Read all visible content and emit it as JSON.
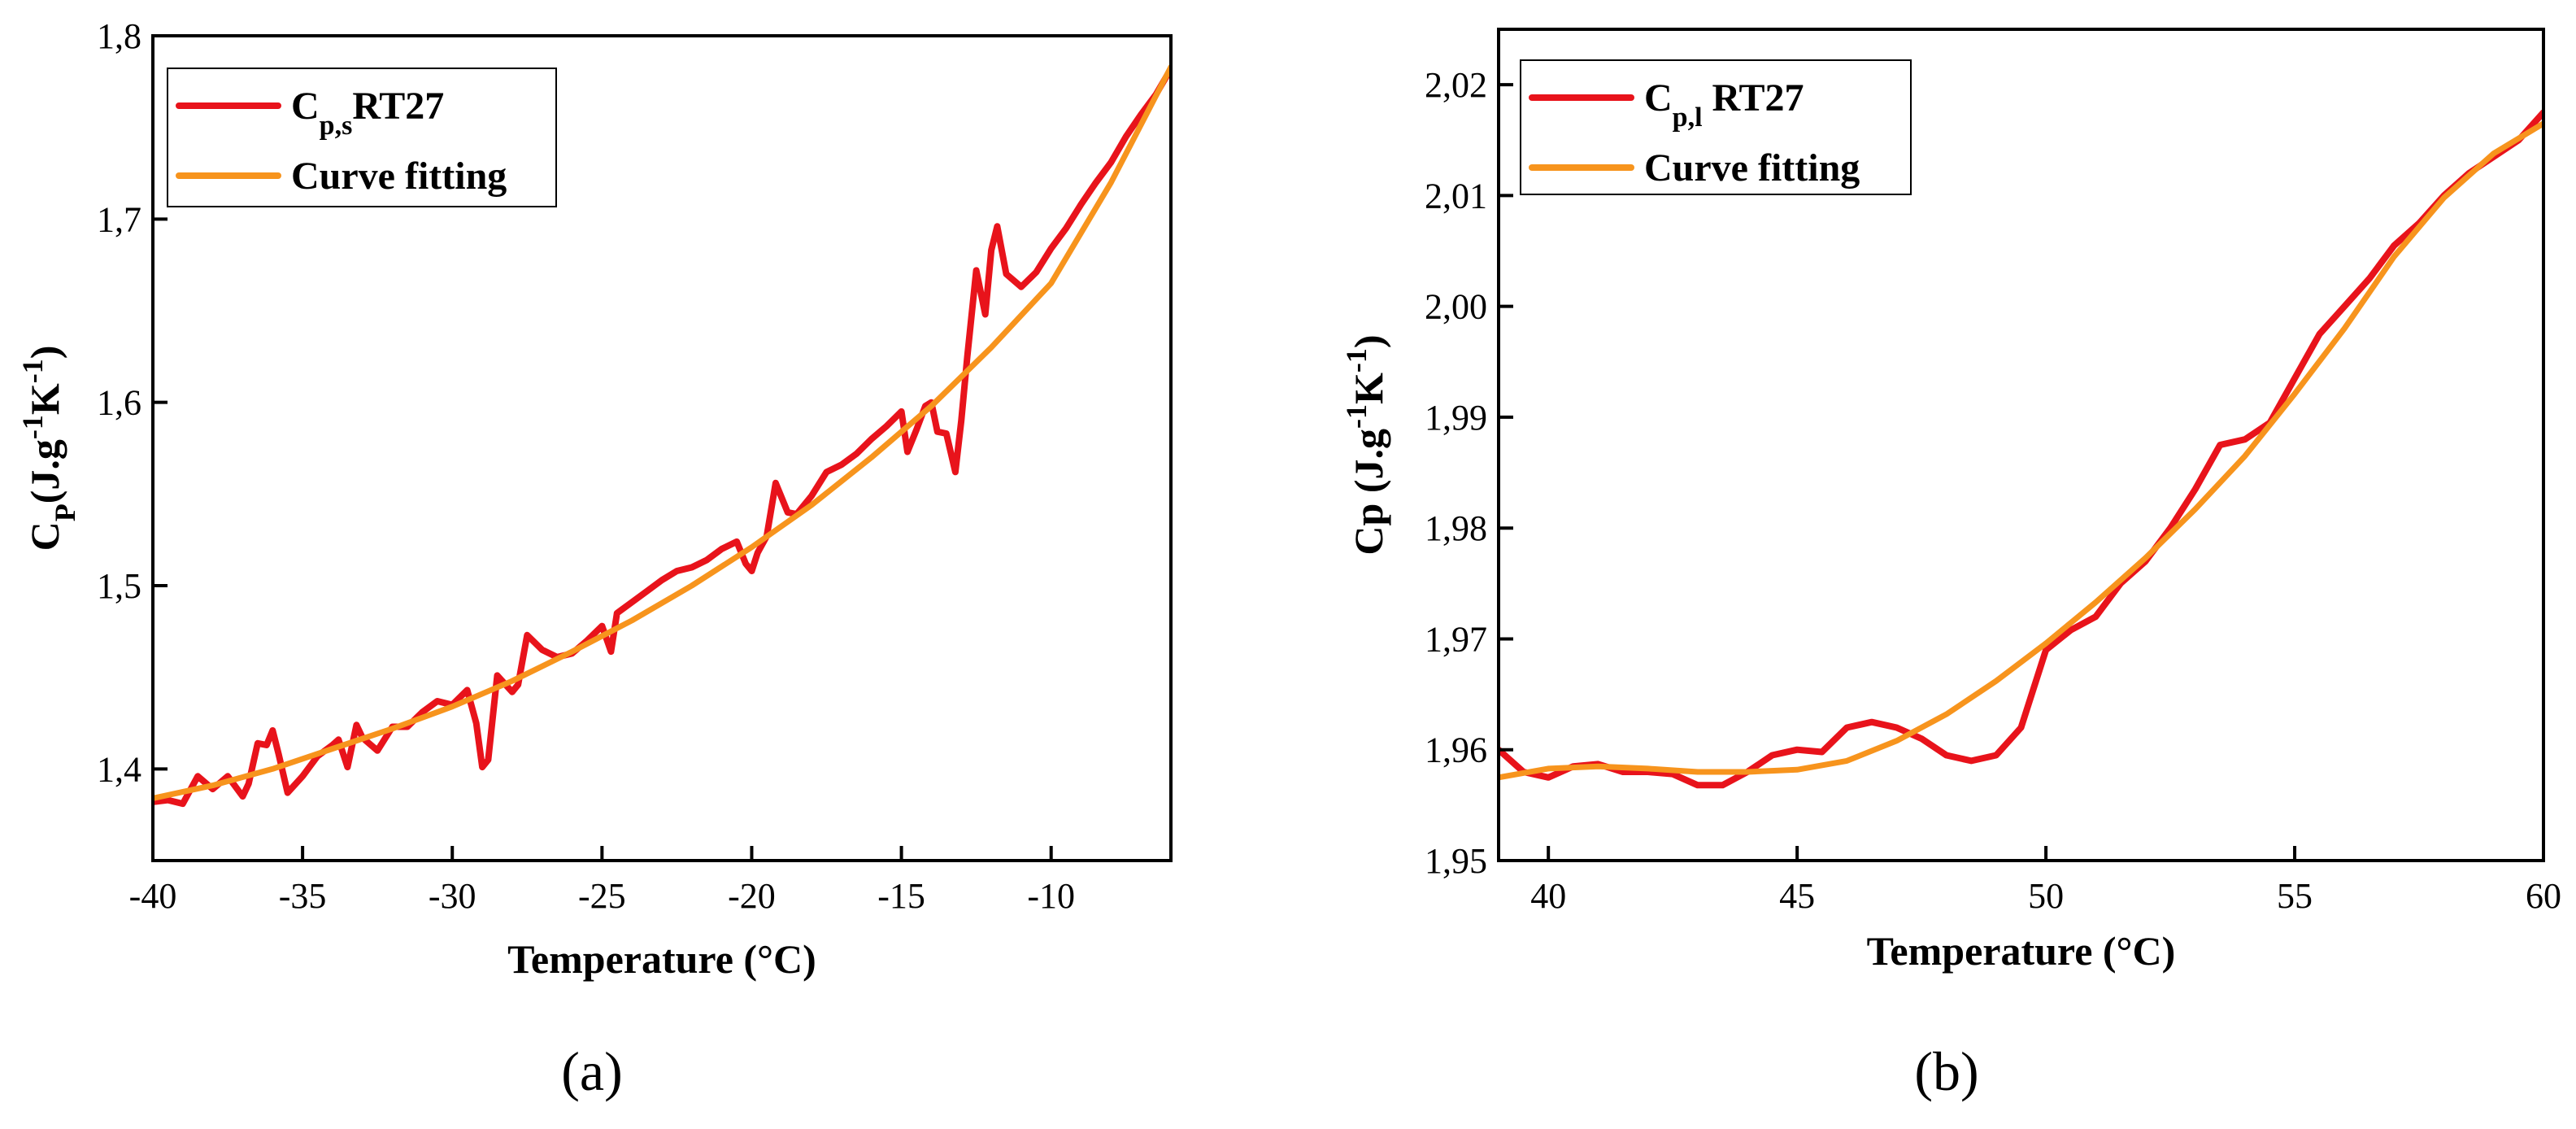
{
  "chart_data": [
    {
      "type": "line",
      "panel_label": "(a)",
      "xlabel": "Temperature (°C)",
      "ylabel": "Cp(J.g-1K-1)",
      "ylabel_parts": {
        "main": "C",
        "sub": "P",
        "text1": "(J.g",
        "sup1": "-1",
        "text2": "K",
        "sup2": "-1",
        "text3": ")"
      },
      "xlim": [
        -40,
        -6
      ],
      "ylim": [
        1.35,
        1.8
      ],
      "xticks": [
        -40,
        -35,
        -30,
        -25,
        -20,
        -15,
        -10
      ],
      "xtick_labels": [
        "-40",
        "-35",
        "-30",
        "-25",
        "-20",
        "-15",
        "-10"
      ],
      "yticks": [
        1.4,
        1.5,
        1.6,
        1.7,
        1.8
      ],
      "ytick_labels": [
        "1,4",
        "1,5",
        "1,6",
        "1,7",
        "1,8"
      ],
      "legend_position": "top-left",
      "colors": {
        "measured": "#e8131b",
        "fit": "#f7941d"
      },
      "series": [
        {
          "name": "Cp,s RT27",
          "legend_parts": {
            "main": "C",
            "sub": "p,s",
            "rest": "RT27"
          },
          "role": "measured",
          "x": [
            -40,
            -39.5,
            -39,
            -38.5,
            -38,
            -37.5,
            -37,
            -36.8,
            -36.5,
            -36.2,
            -36,
            -35.8,
            -35.5,
            -35,
            -34.5,
            -34,
            -33.8,
            -33.5,
            -33.2,
            -33,
            -32.5,
            -32,
            -31.5,
            -31,
            -30.5,
            -30,
            -29.5,
            -29.2,
            -29,
            -28.8,
            -28.5,
            -28,
            -27.8,
            -27.5,
            -27,
            -26.5,
            -26,
            -25.5,
            -25,
            -24.7,
            -24.5,
            -24,
            -23.5,
            -23,
            -22.5,
            -22,
            -21.5,
            -21,
            -20.5,
            -20.2,
            -20,
            -19.8,
            -19.5,
            -19.2,
            -19,
            -18.8,
            -18.5,
            -18,
            -17.5,
            -17,
            -16.5,
            -16,
            -15.5,
            -15,
            -14.8,
            -14.5,
            -14.2,
            -14,
            -13.8,
            -13.5,
            -13.2,
            -13,
            -12.8,
            -12.5,
            -12.2,
            -12,
            -11.8,
            -11.5,
            -11,
            -10.5,
            -10,
            -9.5,
            -9,
            -8.5,
            -8,
            -7.5,
            -7,
            -6.5,
            -6
          ],
          "y": [
            1.382,
            1.383,
            1.381,
            1.396,
            1.389,
            1.396,
            1.385,
            1.392,
            1.414,
            1.413,
            1.421,
            1.408,
            1.387,
            1.396,
            1.407,
            1.413,
            1.416,
            1.401,
            1.424,
            1.417,
            1.41,
            1.423,
            1.423,
            1.431,
            1.437,
            1.435,
            1.443,
            1.425,
            1.401,
            1.405,
            1.451,
            1.442,
            1.446,
            1.473,
            1.465,
            1.461,
            1.463,
            1.47,
            1.478,
            1.464,
            1.485,
            1.491,
            1.497,
            1.503,
            1.508,
            1.51,
            1.514,
            1.52,
            1.524,
            1.512,
            1.508,
            1.518,
            1.527,
            1.556,
            1.548,
            1.54,
            1.539,
            1.549,
            1.562,
            1.566,
            1.572,
            1.58,
            1.587,
            1.595,
            1.573,
            1.585,
            1.598,
            1.6,
            1.584,
            1.583,
            1.562,
            1.59,
            1.625,
            1.672,
            1.648,
            1.683,
            1.696,
            1.67,
            1.663,
            1.671,
            1.684,
            1.695,
            1.708,
            1.72,
            1.731,
            1.745,
            1.757,
            1.768,
            1.782
          ]
        },
        {
          "name": "Curve fitting",
          "legend_parts": {
            "main": "Curve fitting",
            "sub": "",
            "rest": ""
          },
          "role": "fit",
          "x": [
            -40,
            -38,
            -36,
            -34,
            -32,
            -30,
            -28,
            -26,
            -24,
            -22,
            -20,
            -18,
            -16,
            -14,
            -12,
            -10,
            -8,
            -6
          ],
          "y": [
            1.384,
            1.391,
            1.4,
            1.411,
            1.422,
            1.434,
            1.448,
            1.464,
            1.481,
            1.5,
            1.521,
            1.544,
            1.57,
            1.598,
            1.63,
            1.665,
            1.72,
            1.783
          ]
        }
      ]
    },
    {
      "type": "line",
      "panel_label": "(b)",
      "xlabel": "Temperature (°C)",
      "ylabel": "Cp (J.g-1K-1)",
      "ylabel_parts": {
        "main": "Cp",
        "sub": "",
        "text1": " (J.g",
        "sup1": "-1",
        "text2": "K",
        "sup2": "-1",
        "text3": ")"
      },
      "xlim": [
        39,
        60
      ],
      "ylim": [
        1.95,
        2.025
      ],
      "xticks": [
        40,
        45,
        50,
        55,
        60
      ],
      "xtick_labels": [
        "40",
        "45",
        "50",
        "55",
        "60"
      ],
      "yticks": [
        1.95,
        1.96,
        1.97,
        1.98,
        1.99,
        2.0,
        2.01,
        2.02
      ],
      "ytick_labels": [
        "1,95",
        "1,96",
        "1,97",
        "1,98",
        "1,99",
        "2,00",
        "2,01",
        "2,02"
      ],
      "legend_position": "top-left",
      "colors": {
        "measured": "#e8131b",
        "fit": "#f7941d"
      },
      "series": [
        {
          "name": "Cp,l RT27",
          "legend_parts": {
            "main": "C",
            "sub": "p,l",
            "rest": " RT27"
          },
          "role": "measured",
          "x": [
            39,
            39.5,
            40,
            40.5,
            41,
            41.5,
            42,
            42.5,
            43,
            43.5,
            44,
            44.5,
            45,
            45.5,
            46,
            46.5,
            47,
            47.5,
            48,
            48.5,
            49,
            49.5,
            50,
            50.5,
            51,
            51.5,
            52,
            52.5,
            53,
            53.5,
            54,
            54.5,
            55,
            55.5,
            56,
            56.5,
            57,
            57.5,
            58,
            58.5,
            59,
            59.5,
            60
          ],
          "y": [
            1.96,
            1.958,
            1.9575,
            1.9585,
            1.9587,
            1.958,
            1.958,
            1.9578,
            1.9568,
            1.9568,
            1.958,
            1.9595,
            1.96,
            1.9598,
            1.962,
            1.9625,
            1.962,
            1.961,
            1.9595,
            1.959,
            1.9595,
            1.962,
            1.969,
            1.9708,
            1.972,
            1.975,
            1.977,
            1.98,
            1.9835,
            1.9875,
            1.988,
            1.9895,
            1.9935,
            1.9975,
            2.0,
            2.0025,
            2.0055,
            2.0075,
            2.01,
            2.012,
            2.0135,
            2.015,
            2.0175
          ]
        },
        {
          "name": "Curve fitting",
          "legend_parts": {
            "main": "Curve fitting",
            "sub": "",
            "rest": ""
          },
          "role": "fit",
          "x": [
            39,
            40,
            41,
            42,
            43,
            44,
            45,
            46,
            47,
            48,
            49,
            50,
            51,
            52,
            53,
            54,
            55,
            56,
            57,
            58,
            59,
            60
          ],
          "y": [
            1.9575,
            1.9583,
            1.9585,
            1.9583,
            1.958,
            1.958,
            1.9582,
            1.959,
            1.9608,
            1.9632,
            1.9662,
            1.9696,
            1.9733,
            1.9773,
            1.9817,
            1.9865,
            1.9921,
            1.998,
            2.0045,
            2.0098,
            2.0138,
            2.0165
          ]
        }
      ]
    }
  ]
}
